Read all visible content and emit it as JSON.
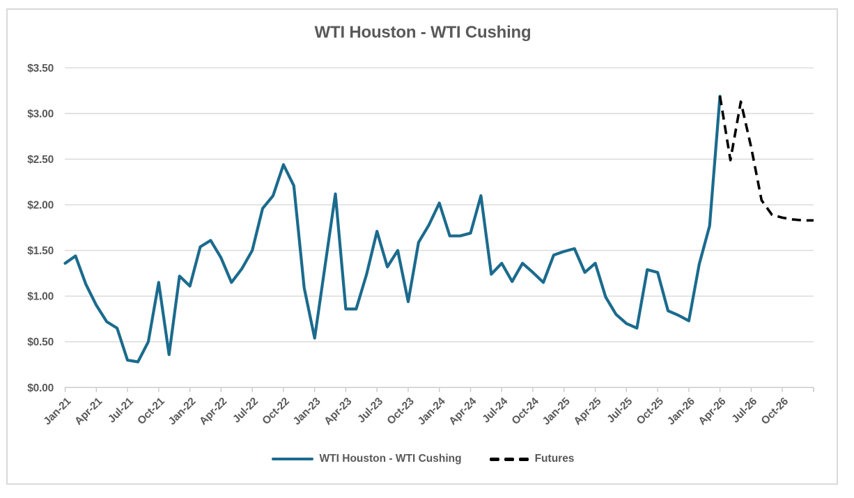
{
  "chart_data": {
    "type": "line",
    "title": "WTI Houston - WTI Cushing",
    "x": [
      "Jan-21",
      "Feb-21",
      "Mar-21",
      "Apr-21",
      "May-21",
      "Jun-21",
      "Jul-21",
      "Aug-21",
      "Sep-21",
      "Oct-21",
      "Nov-21",
      "Dec-21",
      "Jan-22",
      "Feb-22",
      "Mar-22",
      "Apr-22",
      "May-22",
      "Jun-22",
      "Jul-22",
      "Aug-22",
      "Sep-22",
      "Oct-22",
      "Nov-22",
      "Dec-22",
      "Jan-23",
      "Feb-23",
      "Mar-23",
      "Apr-23",
      "May-23",
      "Jun-23",
      "Jul-23",
      "Aug-23",
      "Sep-23",
      "Oct-23",
      "Nov-23",
      "Dec-23",
      "Jan-24",
      "Feb-24",
      "Mar-24",
      "Apr-24",
      "May-24",
      "Jun-24",
      "Jul-24",
      "Aug-24",
      "Sep-24",
      "Oct-24",
      "Nov-24",
      "Dec-24",
      "Jan-25",
      "Feb-25",
      "Mar-25",
      "Apr-25",
      "May-25",
      "Jun-25",
      "Jul-25",
      "Aug-25",
      "Sep-25",
      "Oct-25",
      "Nov-25",
      "Dec-25",
      "Jan-26",
      "Feb-26",
      "Mar-26",
      "Apr-26",
      "May-26",
      "Jun-26",
      "Jul-26",
      "Aug-26",
      "Sep-26",
      "Oct-26",
      "Nov-26",
      "Dec-26",
      "Jan-27"
    ],
    "x_tick_interval": 3,
    "x_tick_labels": [
      "Jan-21",
      "Apr-21",
      "Jul-21",
      "Oct-21",
      "Jan-22",
      "Apr-22",
      "Jul-22",
      "Oct-22",
      "Jan-23",
      "Apr-23",
      "Jul-23",
      "Oct-23",
      "Jan-24",
      "Apr-24",
      "Jul-24",
      "Oct-24",
      "Jan-25",
      "Apr-25",
      "Jul-25",
      "Oct-25",
      "Jan-26",
      "Apr-26",
      "Jul-26",
      "Oct-26"
    ],
    "y_ticks": {
      "values": [
        0,
        0.5,
        1.0,
        1.5,
        2.0,
        2.5,
        3.0,
        3.5
      ],
      "labels": [
        "$0.00",
        "$0.50",
        "$1.00",
        "$1.50",
        "$2.00",
        "$2.50",
        "$3.00",
        "$3.50"
      ]
    },
    "ylim": [
      0,
      3.5
    ],
    "grid": true,
    "legend_position": "bottom",
    "series": [
      {
        "name": "WTI Houston - WTI Cushing",
        "style": "solid",
        "color": "#1B6B8D",
        "start_index": 0,
        "values": [
          1.36,
          1.44,
          1.13,
          0.9,
          0.72,
          0.65,
          0.3,
          0.28,
          0.5,
          1.15,
          0.36,
          1.22,
          1.11,
          1.54,
          1.61,
          1.42,
          1.15,
          1.3,
          1.5,
          1.96,
          2.1,
          2.44,
          2.21,
          1.09,
          0.54,
          1.33,
          2.12,
          0.86,
          0.86,
          1.24,
          1.71,
          1.32,
          1.5,
          0.94,
          1.59,
          1.78,
          2.02,
          1.66,
          1.66,
          1.69,
          2.1,
          1.24,
          1.36,
          1.16,
          1.36,
          1.26,
          1.15,
          1.45,
          1.49,
          1.52,
          1.26,
          1.36,
          0.99,
          0.8,
          0.7,
          0.65,
          1.29,
          1.26,
          0.84,
          0.79,
          0.73,
          1.35,
          1.77,
          3.19
        ]
      },
      {
        "name": "Futures",
        "style": "dashed",
        "color": "#000000",
        "start_index": 63,
        "values": [
          3.19,
          2.49,
          3.13,
          2.63,
          2.05,
          1.89,
          1.86,
          1.84,
          1.83,
          1.83
        ]
      }
    ]
  }
}
